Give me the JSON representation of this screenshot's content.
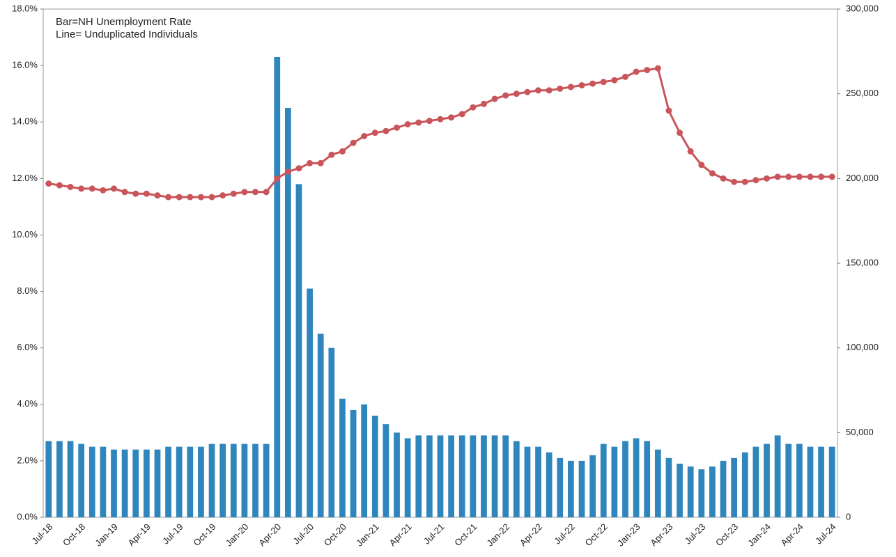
{
  "chart_data": {
    "type": "combo",
    "annotations": [
      "Bar=NH Unemployment Rate",
      "Line= Unduplicated Individuals"
    ],
    "categories": [
      "Jul-18",
      null,
      null,
      "Oct-18",
      null,
      null,
      "Jan-19",
      null,
      null,
      "Apr-19",
      null,
      null,
      "Jul-19",
      null,
      null,
      "Oct-19",
      null,
      null,
      "Jan-20",
      null,
      null,
      "Apr-20",
      null,
      null,
      "Jul-20",
      null,
      null,
      "Oct-20",
      null,
      null,
      "Jan-21",
      null,
      null,
      "Apr-21",
      null,
      null,
      "Jul-21",
      null,
      null,
      "Oct-21",
      null,
      null,
      "Jan-22",
      null,
      null,
      "Apr-22",
      null,
      null,
      "Jul-22",
      null,
      null,
      "Oct-22",
      null,
      null,
      "Jan-23",
      null,
      null,
      "Apr-23",
      null,
      null,
      "Jul-23",
      null,
      null,
      "Oct-23",
      null,
      null,
      "Jan-24",
      null,
      null,
      "Apr-24",
      null,
      null,
      "Jul-24"
    ],
    "series": [
      {
        "type": "bar",
        "color": "#2f86bd",
        "values": [
          2.7,
          2.7,
          2.7,
          2.6,
          2.5,
          2.5,
          2.4,
          2.4,
          2.4,
          2.4,
          2.4,
          2.5,
          2.5,
          2.5,
          2.5,
          2.6,
          2.6,
          2.6,
          2.6,
          2.6,
          2.6,
          16.3,
          14.5,
          11.8,
          8.1,
          6.5,
          6.0,
          4.2,
          3.8,
          4.0,
          3.6,
          3.3,
          3.0,
          2.8,
          2.9,
          2.9,
          2.9,
          2.9,
          2.9,
          2.9,
          2.9,
          2.9,
          2.9,
          2.7,
          2.5,
          2.5,
          2.3,
          2.1,
          2.0,
          2.0,
          2.2,
          2.6,
          2.5,
          2.7,
          2.8,
          2.7,
          2.4,
          2.1,
          1.9,
          1.8,
          1.7,
          1.8,
          2.0,
          2.1,
          2.3,
          2.5,
          2.6,
          2.9,
          2.6,
          2.6,
          2.5,
          2.5,
          2.5
        ]
      },
      {
        "type": "line",
        "axis": "y2",
        "color": "#c9555a",
        "values": [
          197000,
          196000,
          195000,
          194000,
          194000,
          193000,
          194000,
          192000,
          191000,
          191000,
          190000,
          189000,
          189000,
          189000,
          189000,
          189000,
          190000,
          191000,
          192000,
          192000,
          192000,
          200000,
          204000,
          206000,
          209000,
          209000,
          214000,
          216000,
          221000,
          225000,
          227000,
          228000,
          230000,
          232000,
          233000,
          234000,
          235000,
          236000,
          238000,
          242000,
          244000,
          247000,
          249000,
          250000,
          251000,
          252000,
          252000,
          253000,
          254000,
          255000,
          256000,
          257000,
          258000,
          260000,
          263000,
          264000,
          265000,
          240000,
          227000,
          216000,
          208000,
          203000,
          200000,
          198000,
          198000,
          199000,
          200000,
          201000,
          201000,
          201000,
          201000,
          201000,
          201000
        ]
      }
    ],
    "ylim": [
      0,
      18
    ],
    "yticks": [
      {
        "value": 0,
        "label": "0.0%"
      },
      {
        "value": 2,
        "label": "2.0%"
      },
      {
        "value": 4,
        "label": "4.0%"
      },
      {
        "value": 6,
        "label": "6.0%"
      },
      {
        "value": 8,
        "label": "8.0%"
      },
      {
        "value": 10,
        "label": "10.0%"
      },
      {
        "value": 12,
        "label": "12.0%"
      },
      {
        "value": 14,
        "label": "14.0%"
      },
      {
        "value": 16,
        "label": "16.0%"
      },
      {
        "value": 18,
        "label": "18.0%"
      }
    ],
    "y2lim": [
      0,
      300000
    ],
    "y2ticks": [
      0,
      {
        "value": 50000,
        "label": "50,000"
      },
      {
        "value": 100000,
        "label": "100,000"
      },
      {
        "value": 150000,
        "label": "150,000"
      },
      {
        "value": 200000,
        "label": "200,000"
      },
      {
        "value": 250000,
        "label": "250,000"
      },
      {
        "value": 300000,
        "label": "300,000"
      }
    ]
  }
}
